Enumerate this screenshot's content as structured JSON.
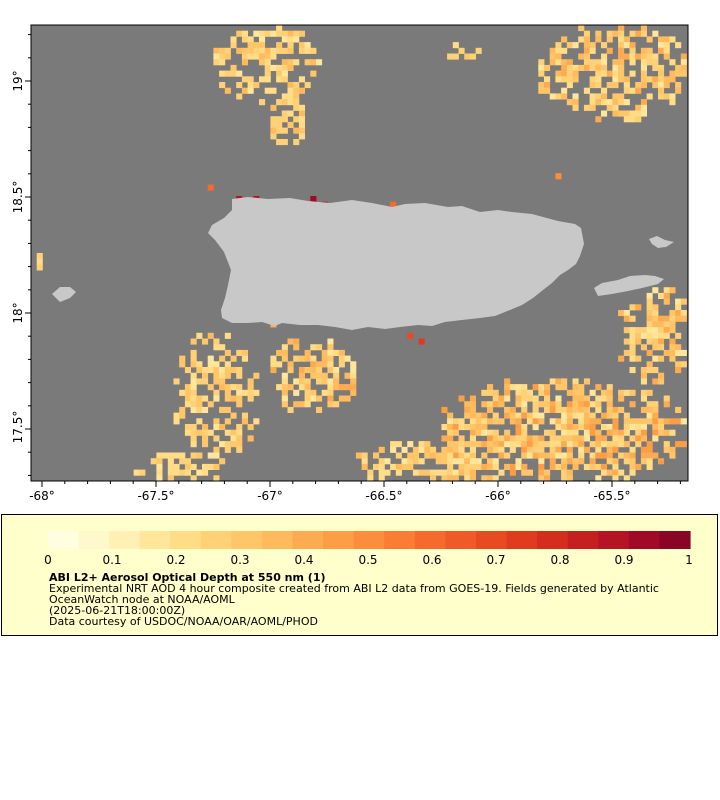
{
  "map": {
    "lon_ticks": [
      "-68°",
      "-67.5°",
      "-67°",
      "-66.5°",
      "-66°",
      "-65.5°"
    ],
    "lat_ticks": [
      "19°",
      "18.5°",
      "18°",
      "17.5°"
    ],
    "colors": {
      "ocean": "#7a7a7a",
      "land": "#c8c8c8",
      "aod_low": "#fff2b8",
      "aod_mid": "#fdc35c",
      "aod_high": "#e8401c",
      "aod_max": "#800026"
    }
  },
  "colorbar": {
    "ticks": [
      "0",
      "0.1",
      "0.2",
      "0.3",
      "0.4",
      "0.5",
      "0.6",
      "0.7",
      "0.8",
      "0.9",
      "1"
    ],
    "stops": [
      "#ffffe0",
      "#fff8cc",
      "#fff0b3",
      "#ffe69a",
      "#ffdc85",
      "#fed176",
      "#fec668",
      "#feba5c",
      "#fdab50",
      "#fd9d46",
      "#fc8d3c",
      "#fa7c35",
      "#f76a2e",
      "#f05a28",
      "#e84a22",
      "#df3b1f",
      "#d42d1e",
      "#c61f20",
      "#b51424",
      "#a10a27",
      "#8a0426"
    ]
  },
  "caption": {
    "title": "ABI L2+ Aerosol Optical Depth at 550 nm (1)",
    "line1": "Experimental NRT AOD 4 hour composite created from ABI L2 data from GOES-19. Fields generated by Atlantic",
    "line2": "OceanWatch node at NOAA/AOML",
    "line3": "(2025-06-21T18:00:00Z)",
    "line4": "Data courtesy of USDOC/NOAA/OAR/AOML/PHOD"
  }
}
